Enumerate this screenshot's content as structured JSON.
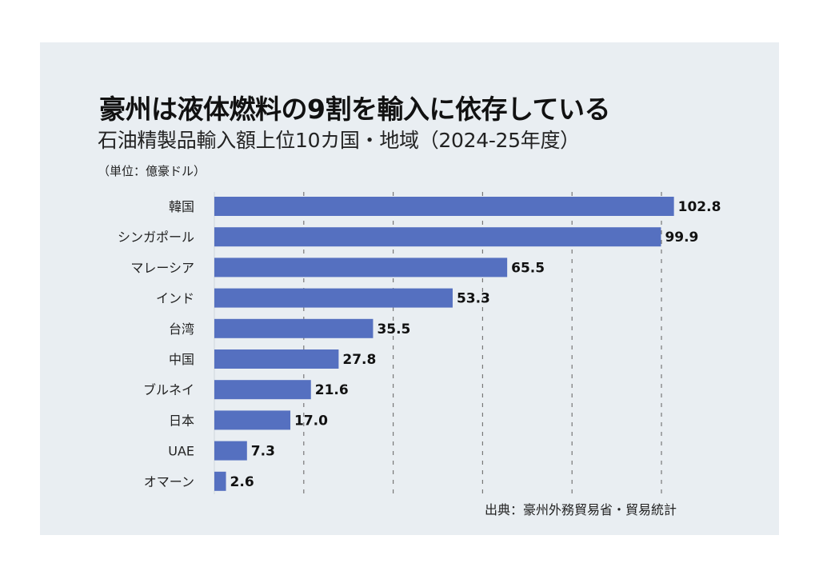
{
  "header": {
    "title": "豪州は液体燃料の9割を輸入に依存している",
    "subtitle": "石油精製品輸入額上位10カ国・地域（2024-25年度）",
    "unit": "（単位：億豪ドル）"
  },
  "footer": {
    "source": "出典：豪州外務貿易省・貿易統計"
  },
  "colors": {
    "bar": "#5570c0",
    "background": "#e9eef2",
    "gridline": "#777777"
  },
  "chart_data": {
    "type": "bar",
    "orientation": "horizontal",
    "title": "豪州は液体燃料の9割を輸入に依存している",
    "subtitle": "石油精製品輸入額上位10カ国・地域（2024-25年度）",
    "xlabel": "",
    "ylabel": "",
    "unit": "億豪ドル",
    "categories": [
      "韓国",
      "シンガポール",
      "マレーシア",
      "インド",
      "台湾",
      "中国",
      "ブルネイ",
      "日本",
      "UAE",
      "オマーン"
    ],
    "values": [
      102.8,
      99.9,
      65.5,
      53.3,
      35.5,
      27.8,
      21.6,
      17.0,
      7.3,
      2.6
    ],
    "value_labels": [
      "102.8",
      "99.9",
      "65.5",
      "53.3",
      "35.5",
      "27.8",
      "21.6",
      "17.0",
      "7.3",
      "2.6"
    ],
    "xlim": [
      0,
      105
    ],
    "gridlines": [
      20,
      40,
      60,
      80,
      100
    ],
    "grid": true,
    "grid_style": "dashed-vertical",
    "axis_tick_labels_shown": false,
    "legend": "none"
  }
}
